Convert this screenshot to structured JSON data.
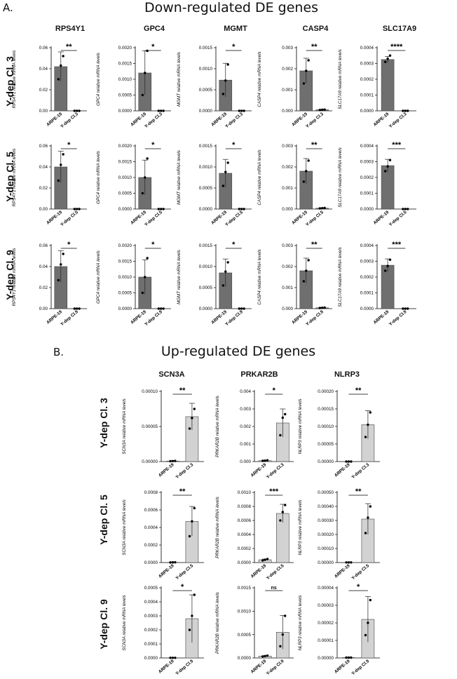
{
  "sections": [
    {
      "letter": "A.",
      "title": "Down-regulated DE genes",
      "genes": [
        "RPS4Y1",
        "GPC4",
        "MGMT",
        "CASP4",
        "SLC17A9"
      ],
      "rows": [
        "Y-dep Cl. 3",
        "Y-dep Cl. 5",
        "Y-dep Cl. 9"
      ]
    },
    {
      "letter": "B.",
      "title": "Up-regulated DE genes",
      "genes": [
        "SCN3A",
        "PRKAR2B",
        "NLRP3"
      ],
      "rows": [
        "Y-dep Cl. 3",
        "Y-dep Cl. 5",
        "Y-dep Cl. 9"
      ]
    }
  ],
  "chart_data": [
    {
      "type": "bar",
      "gene": "RPS4Y1",
      "ylabel": "RPS4Y1 relative mRNA levels",
      "categories": [
        "ARPE-19",
        "Y-dep Cl.3"
      ],
      "values": [
        0.042,
        0
      ],
      "error": [
        0.014,
        0
      ],
      "points": [
        [
          0.03,
          0.043,
          0.052
        ],
        [
          0,
          0,
          0
        ]
      ],
      "yticks": [
        "0.00",
        "0.02",
        "0.04",
        "0.06"
      ],
      "ylim": [
        0,
        0.06
      ],
      "significance": "**",
      "color": "#6f6f6f"
    },
    {
      "type": "bar",
      "gene": "GPC4",
      "ylabel": "GPC4 relative mRNA levels",
      "categories": [
        "ARPE-19",
        "Y-dep Cl.3"
      ],
      "values": [
        0.0012,
        0
      ],
      "error": [
        0.0007,
        0
      ],
      "points": [
        [
          0.0005,
          0.0012,
          0.0019
        ],
        [
          0,
          0,
          0
        ]
      ],
      "yticks": [
        "0.0000",
        "0.0005",
        "0.0010",
        "0.0015",
        "0.0020"
      ],
      "ylim": [
        0,
        0.002
      ],
      "significance": "*",
      "color": "#6f6f6f"
    },
    {
      "type": "bar",
      "gene": "MGMT",
      "ylabel": "MGMT relative mRNA levels",
      "categories": [
        "ARPE-19",
        "Y-dep Cl.3"
      ],
      "values": [
        0.00073,
        0
      ],
      "error": [
        0.0004,
        0
      ],
      "points": [
        [
          0.0004,
          0.00072,
          0.0011
        ],
        [
          0,
          0,
          0
        ]
      ],
      "yticks": [
        "0.0000",
        "0.0005",
        "0.0010",
        "0.0015"
      ],
      "ylim": [
        0,
        0.0015
      ],
      "significance": "*",
      "color": "#6f6f6f"
    },
    {
      "type": "bar",
      "gene": "CASP4",
      "ylabel": "CASP4 relative mRNA levels",
      "categories": [
        "ARPE-19",
        "Y-dep Cl.3"
      ],
      "values": [
        0.0019,
        5e-05
      ],
      "error": [
        0.0006,
        2e-05
      ],
      "points": [
        [
          0.0013,
          0.0019,
          0.0024
        ],
        [
          4e-05,
          5e-05,
          6e-05
        ]
      ],
      "yticks": [
        "0.000",
        "0.001",
        "0.002",
        "0.003"
      ],
      "ylim": [
        0,
        0.003
      ],
      "significance": "**",
      "color": "#6f6f6f"
    },
    {
      "type": "bar",
      "gene": "SLC17A9",
      "ylabel": "SLC17A9 relative mRNA levels",
      "categories": [
        "ARPE-19",
        "Y-dep Cl.3"
      ],
      "values": [
        0.000325,
        0
      ],
      "error": [
        2e-05,
        0
      ],
      "points": [
        [
          0.00031,
          0.00033,
          0.00035
        ],
        [
          0,
          0,
          0
        ]
      ],
      "yticks": [
        "0.0000",
        "0.0001",
        "0.0002",
        "0.0003",
        "0.0004"
      ],
      "ylim": [
        0,
        0.0004
      ],
      "significance": "****",
      "color": "#6f6f6f"
    },
    {
      "type": "bar",
      "gene": "RPS4Y1",
      "ylabel": "RPS4Y1 relative mRNA levels",
      "categories": [
        "ARPE-19",
        "Y-dep Cl.5"
      ],
      "values": [
        0.04,
        0
      ],
      "error": [
        0.015,
        0
      ],
      "points": [
        [
          0.027,
          0.042,
          0.052
        ],
        [
          0,
          0,
          0
        ]
      ],
      "yticks": [
        "0.00",
        "0.02",
        "0.04",
        "0.06"
      ],
      "ylim": [
        0,
        0.06
      ],
      "significance": "*",
      "color": "#6f6f6f"
    },
    {
      "type": "bar",
      "gene": "GPC4",
      "ylabel": "GPC4 relative mRNA levels",
      "categories": [
        "ARPE-19",
        "Y-dep Cl.5"
      ],
      "values": [
        0.001,
        0
      ],
      "error": [
        0.00055,
        0
      ],
      "points": [
        [
          0.0005,
          0.001,
          0.0016
        ],
        [
          0,
          0,
          0
        ]
      ],
      "yticks": [
        "0.0000",
        "0.0005",
        "0.0010",
        "0.0015",
        "0.0020"
      ],
      "ylim": [
        0,
        0.002
      ],
      "significance": "*",
      "color": "#6f6f6f"
    },
    {
      "type": "bar",
      "gene": "MGMT",
      "ylabel": "MGMT relative mRNA levels",
      "categories": [
        "ARPE-19",
        "Y-dep Cl.5"
      ],
      "values": [
        0.00085,
        0
      ],
      "error": [
        0.00033,
        0
      ],
      "points": [
        [
          0.00055,
          0.00088,
          0.0011
        ],
        [
          0,
          0,
          0
        ]
      ],
      "yticks": [
        "0.0000",
        "0.0005",
        "0.0010",
        "0.0015"
      ],
      "ylim": [
        0,
        0.0015
      ],
      "significance": "*",
      "color": "#6f6f6f"
    },
    {
      "type": "bar",
      "gene": "CASP4",
      "ylabel": "CASP4 relative mRNA levels",
      "categories": [
        "ARPE-19",
        "Y-dep Cl.5"
      ],
      "values": [
        0.0018,
        4e-05
      ],
      "error": [
        0.0006,
        2e-05
      ],
      "points": [
        [
          0.0013,
          0.0018,
          0.0023
        ],
        [
          3e-05,
          4e-05,
          5e-05
        ]
      ],
      "yticks": [
        "0.000",
        "0.001",
        "0.002",
        "0.003"
      ],
      "ylim": [
        0,
        0.003
      ],
      "significance": "**",
      "color": "#6f6f6f"
    },
    {
      "type": "bar",
      "gene": "SLC17A9",
      "ylabel": "SLC17A9 relative mRNA levels",
      "categories": [
        "ARPE-19",
        "Y-dep Cl.5"
      ],
      "values": [
        0.000275,
        0
      ],
      "error": [
        4e-05,
        0
      ],
      "points": [
        [
          0.00024,
          0.00027,
          0.00031
        ],
        [
          0,
          0,
          0
        ]
      ],
      "yticks": [
        "0.0000",
        "0.0001",
        "0.0002",
        "0.0003",
        "0.0004"
      ],
      "ylim": [
        0,
        0.0004
      ],
      "significance": "***",
      "color": "#6f6f6f"
    },
    {
      "type": "bar",
      "gene": "RPS4Y1",
      "ylabel": "RPS4Y1 relative mRNA levels",
      "categories": [
        "ARPE-19",
        "Y-dep Cl.9"
      ],
      "values": [
        0.04,
        0
      ],
      "error": [
        0.015,
        0
      ],
      "points": [
        [
          0.027,
          0.042,
          0.052
        ],
        [
          0,
          0,
          0
        ]
      ],
      "yticks": [
        "0.00",
        "0.02",
        "0.04",
        "0.06"
      ],
      "ylim": [
        0,
        0.06
      ],
      "significance": "*",
      "color": "#6f6f6f"
    },
    {
      "type": "bar",
      "gene": "GPC4",
      "ylabel": "GPC4 relative mRNA levels",
      "categories": [
        "ARPE-19",
        "Y-dep Cl.9"
      ],
      "values": [
        0.001,
        0
      ],
      "error": [
        0.00055,
        0
      ],
      "points": [
        [
          0.0005,
          0.001,
          0.0016
        ],
        [
          0,
          0,
          0
        ]
      ],
      "yticks": [
        "0.0000",
        "0.0005",
        "0.0010",
        "0.0015",
        "0.0020"
      ],
      "ylim": [
        0,
        0.002
      ],
      "significance": "*",
      "color": "#6f6f6f"
    },
    {
      "type": "bar",
      "gene": "MGMT",
      "ylabel": "MGMT relative mRNA levels",
      "categories": [
        "ARPE-19",
        "Y-dep Cl.9"
      ],
      "values": [
        0.00085,
        0
      ],
      "error": [
        0.00033,
        0
      ],
      "points": [
        [
          0.00055,
          0.00088,
          0.0011
        ],
        [
          0,
          0,
          0
        ]
      ],
      "yticks": [
        "0.0000",
        "0.0005",
        "0.0010",
        "0.0015"
      ],
      "ylim": [
        0,
        0.0015
      ],
      "significance": "*",
      "color": "#6f6f6f"
    },
    {
      "type": "bar",
      "gene": "CASP4",
      "ylabel": "CASP4 relative mRNA levels",
      "categories": [
        "ARPE-19",
        "Y-dep Cl.9"
      ],
      "values": [
        0.0018,
        4e-05
      ],
      "error": [
        0.0006,
        2e-05
      ],
      "points": [
        [
          0.0013,
          0.0018,
          0.0023
        ],
        [
          3e-05,
          4e-05,
          5e-05
        ]
      ],
      "yticks": [
        "0.000",
        "0.001",
        "0.002",
        "0.003"
      ],
      "ylim": [
        0,
        0.003
      ],
      "significance": "**",
      "color": "#6f6f6f"
    },
    {
      "type": "bar",
      "gene": "SLC17A9",
      "ylabel": "SLC17A9 relative mRNA levels",
      "categories": [
        "ARPE-19",
        "Y-dep Cl.9"
      ],
      "values": [
        0.000275,
        0
      ],
      "error": [
        4e-05,
        0
      ],
      "points": [
        [
          0.00024,
          0.00027,
          0.00031
        ],
        [
          0,
          0,
          0
        ]
      ],
      "yticks": [
        "0.0000",
        "0.0001",
        "0.0002",
        "0.0003",
        "0.0004"
      ],
      "ylim": [
        0,
        0.0004
      ],
      "significance": "***",
      "color": "#6f6f6f"
    },
    {
      "type": "bar",
      "gene": "SCN3A",
      "ylabel": "SCN3A relative mRNA levels",
      "categories": [
        "ARPE-19",
        "Y-dep Cl.3"
      ],
      "values": [
        7e-07,
        6.4e-05
      ],
      "error": [
        3e-07,
        1.9e-05
      ],
      "points": [
        [
          5e-07,
          7e-07,
          9e-07
        ],
        [
          4.7e-05,
          6.2e-05,
          7.5e-05
        ]
      ],
      "yticks": [
        "0.00000",
        "0.00005",
        "0.00010"
      ],
      "ylim": [
        0,
        0.0001
      ],
      "significance": "**",
      "color": "#d2d2d2"
    },
    {
      "type": "bar",
      "gene": "PRKAR2B",
      "ylabel": "PRKAR2B relative mRNA levels",
      "categories": [
        "ARPE-19",
        "Y-dep Cl.3"
      ],
      "values": [
        5e-05,
        0.0022
      ],
      "error": [
        2e-05,
        0.0008
      ],
      "points": [
        [
          4e-05,
          5e-05,
          7e-05
        ],
        [
          0.0015,
          0.0025,
          0.0027
        ]
      ],
      "yticks": [
        "0.000",
        "0.001",
        "0.002",
        "0.003",
        "0.004"
      ],
      "ylim": [
        0,
        0.004
      ],
      "significance": "*",
      "color": "#d2d2d2"
    },
    {
      "type": "bar",
      "gene": "NLRP3",
      "ylabel": "NLRP3 relative mRNA levels",
      "categories": [
        "ARPE-19",
        "Y-dep Cl.3"
      ],
      "values": [
        0,
        0.000105
      ],
      "error": [
        0,
        4e-05
      ],
      "points": [
        [
          0,
          0,
          0
        ],
        [
          7e-05,
          0.000105,
          0.00014
        ]
      ],
      "yticks": [
        "0.00000",
        "0.00005",
        "0.00010",
        "0.00015",
        "0.00020"
      ],
      "ylim": [
        0,
        0.0002
      ],
      "significance": "**",
      "color": "#d2d2d2"
    },
    {
      "type": "bar",
      "gene": "SCN3A",
      "ylabel": "SCN3A relative mRNA levels",
      "categories": [
        "ARPE-19",
        "Y-dep Cl.5"
      ],
      "values": [
        2e-06,
        0.00047
      ],
      "error": [
        1e-06,
        0.00017
      ],
      "points": [
        [
          1e-06,
          2e-06,
          3e-06
        ],
        [
          0.0003,
          0.00047,
          0.00062
        ]
      ],
      "yticks": [
        "0.0000",
        "0.0002",
        "0.0004",
        "0.0006",
        "0.0008"
      ],
      "ylim": [
        0,
        0.0008
      ],
      "significance": "**",
      "color": "#d2d2d2"
    },
    {
      "type": "bar",
      "gene": "PRKAR2B",
      "ylabel": "PRKAR2B relative mRNA levels",
      "categories": [
        "ARPE-19",
        "Y-dep Cl.5"
      ],
      "values": [
        4e-05,
        0.0007
      ],
      "error": [
        1e-05,
        0.00013
      ],
      "points": [
        [
          3e-05,
          4e-05,
          5e-05
        ],
        [
          0.0006,
          0.00072,
          0.00082
        ]
      ],
      "yticks": [
        "0.0000",
        "0.0002",
        "0.0004",
        "0.0006",
        "0.0008",
        "0.0010"
      ],
      "ylim": [
        0,
        0.001
      ],
      "significance": "***",
      "color": "#d2d2d2"
    },
    {
      "type": "bar",
      "gene": "NLRP3",
      "ylabel": "NLRP3 relative mRNA levels",
      "categories": [
        "ARPE-19",
        "Y-dep Cl.5"
      ],
      "values": [
        1e-06,
        0.00031
      ],
      "error": [
        5e-07,
        0.00011
      ],
      "points": [
        [
          1e-06,
          1e-06,
          1e-06
        ],
        [
          0.00021,
          0.00032,
          0.0004
        ]
      ],
      "yticks": [
        "0.00000",
        "0.00010",
        "0.00020",
        "0.00030",
        "0.00040",
        "0.00050"
      ],
      "ylim": [
        0,
        0.0005
      ],
      "significance": "**",
      "color": "#d2d2d2"
    },
    {
      "type": "bar",
      "gene": "SCN3A",
      "ylabel": "SCN3A relative mRNA levels",
      "categories": [
        "ARPE-19",
        "Y-dep Cl.9"
      ],
      "values": [
        1e-06,
        0.00028
      ],
      "error": [
        5e-07,
        0.00017
      ],
      "points": [
        [
          1e-06,
          1e-06,
          1e-06
        ],
        [
          0.0002,
          0.0003,
          0.00045
        ]
      ],
      "yticks": [
        "0.0000",
        "0.0001",
        "0.0002",
        "0.0003",
        "0.0004",
        "0.0005"
      ],
      "ylim": [
        0,
        0.0005
      ],
      "significance": "*",
      "color": "#d2d2d2"
    },
    {
      "type": "bar",
      "gene": "PRKAR2B",
      "ylabel": "PRKAR2B relative mRNA levels",
      "categories": [
        "ARPE-19",
        "Y-dep Cl.9"
      ],
      "values": [
        4e-05,
        0.00055
      ],
      "error": [
        1e-05,
        0.00036
      ],
      "points": [
        [
          3e-05,
          4e-05,
          5e-05
        ],
        [
          0.00025,
          0.0005,
          0.0009
        ]
      ],
      "yticks": [
        "0.0000",
        "0.0005",
        "0.0010",
        "0.0015"
      ],
      "ylim": [
        0,
        0.0015
      ],
      "significance": "ns",
      "color": "#d2d2d2"
    },
    {
      "type": "bar",
      "gene": "NLRP3",
      "ylabel": "NLRP3 relative mRNA levels",
      "categories": [
        "ARPE-19",
        "Y-dep Cl.9"
      ],
      "values": [
        2e-07,
        2.2e-05
      ],
      "error": [
        1e-07,
        1.3e-05
      ],
      "points": [
        [
          2e-07,
          2e-07,
          2e-07
        ],
        [
          1.3e-05,
          2e-05,
          3.3e-05
        ]
      ],
      "yticks": [
        "0.00000",
        "0.00001",
        "0.00002",
        "0.00003",
        "0.00004"
      ],
      "ylim": [
        0,
        4e-05
      ],
      "significance": "*",
      "color": "#d2d2d2"
    }
  ]
}
